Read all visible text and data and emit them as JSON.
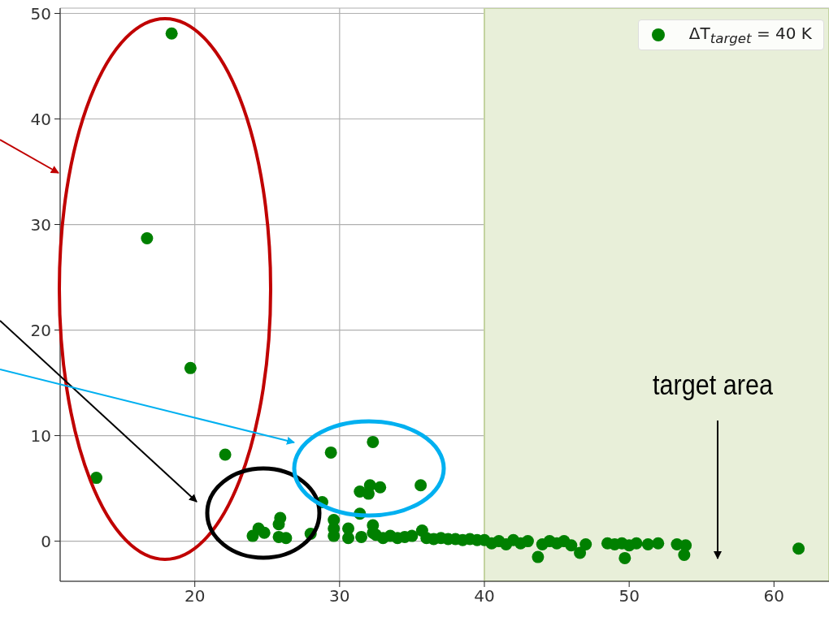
{
  "chart_data": {
    "type": "scatter",
    "xlim": [
      10.7,
      63.8
    ],
    "xticks": [
      20,
      30,
      40,
      50,
      60
    ],
    "ylim": [
      -3.8,
      50.5
    ],
    "yticks": [
      0,
      10,
      20,
      30,
      40,
      50
    ],
    "grid": true,
    "legend": "top right",
    "marker": "circle",
    "bands": [
      {
        "axis": "x",
        "from": 40,
        "to": 63.8,
        "label": "target area",
        "color": "#e8efd9"
      }
    ],
    "series": [
      {
        "name": "ΔT$_{target}$ = 40 K",
        "color": "#008000",
        "x": [
          13.2,
          16.7,
          18.4,
          19.7,
          22.1,
          24.0,
          24.4,
          24.8,
          25.8,
          25.9,
          25.8,
          26.3,
          28.0,
          28.8,
          29.4,
          29.6,
          29.6,
          29.6,
          30.6,
          30.6,
          31.4,
          32.0,
          32.1,
          32.3,
          32.8,
          31.4,
          32.3,
          32.3,
          35.6,
          31.5,
          32.5,
          33.0,
          33.5,
          34.0,
          34.5,
          35.0,
          35.7,
          36.0,
          36.5,
          37.0,
          37.5,
          38.0,
          38.5,
          39.0,
          39.5,
          40.0,
          40.5,
          41.0,
          41.5,
          42.0,
          42.5,
          43.0,
          43.7,
          44.0,
          44.5,
          45.0,
          45.5,
          46.0,
          46.6,
          47.0,
          48.5,
          49.0,
          49.5,
          49.7,
          50.0,
          50.5,
          51.3,
          52.0,
          53.3,
          53.8,
          53.9,
          61.7
        ],
        "values": [
          6.0,
          28.7,
          48.1,
          16.4,
          8.2,
          0.5,
          1.2,
          0.8,
          1.6,
          2.2,
          0.4,
          0.3,
          0.7,
          3.7,
          8.4,
          2.0,
          1.2,
          0.5,
          1.2,
          0.3,
          4.7,
          4.5,
          5.3,
          9.4,
          5.1,
          2.6,
          1.5,
          0.8,
          5.3,
          0.4,
          0.6,
          0.3,
          0.5,
          0.3,
          0.4,
          0.5,
          1.0,
          0.3,
          0.2,
          0.3,
          0.2,
          0.2,
          0.1,
          0.2,
          0.1,
          0.1,
          -0.2,
          0.0,
          -0.3,
          0.1,
          -0.2,
          0.0,
          -1.5,
          -0.3,
          0.0,
          -0.2,
          0.0,
          -0.4,
          -1.1,
          -0.3,
          -0.2,
          -0.3,
          -0.2,
          -1.6,
          -0.4,
          -0.2,
          -0.3,
          -0.2,
          -0.3,
          -1.3,
          -0.4,
          -0.7
        ]
      }
    ]
  }
}
